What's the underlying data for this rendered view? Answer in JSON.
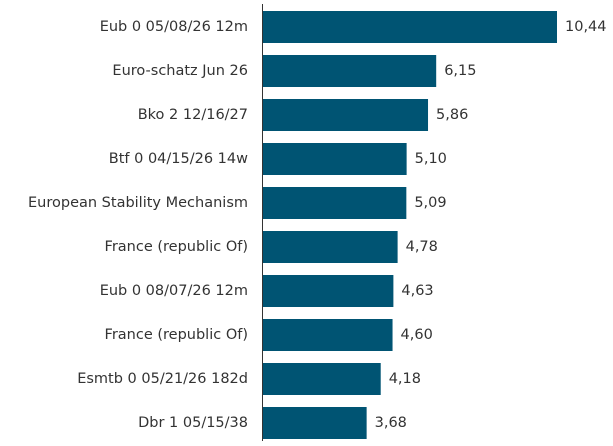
{
  "chart_data": {
    "type": "barh",
    "categories": [
      "Eub 0 05/08/26 12m",
      "Euro-schatz Jun 26",
      "Bko 2 12/16/27",
      "Btf 0 04/15/26 14w",
      "European Stability Mechanism",
      "France (republic Of)",
      "Eub 0 08/07/26 12m",
      "France (republic Of)",
      "Esmtb 0 05/21/26 182d",
      "Dbr 1 05/15/38"
    ],
    "values": [
      10.44,
      6.15,
      5.86,
      5.1,
      5.09,
      4.78,
      4.63,
      4.6,
      4.18,
      3.68
    ],
    "value_labels": [
      "10,44",
      "6,15",
      "5,86",
      "5,10",
      "5,09",
      "4,78",
      "4,63",
      "4,60",
      "4,18",
      "3,68"
    ],
    "color": "#005473"
  }
}
